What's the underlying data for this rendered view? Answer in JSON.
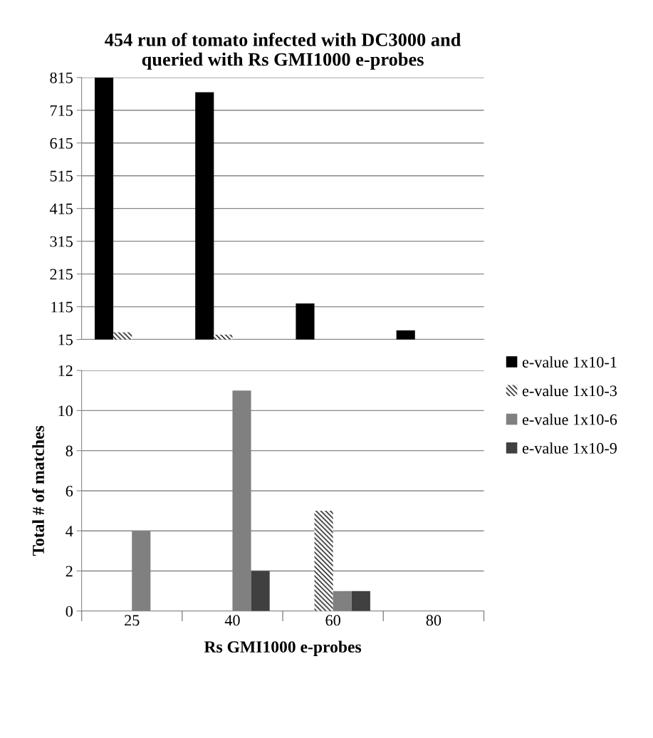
{
  "chart_data": [
    {
      "type": "bar",
      "title": "454 run of tomato infected with DC3000 and\nqueried with Rs GMI1000 e-probes",
      "categories": [
        "25",
        "40",
        "60",
        "80"
      ],
      "ylim": [
        15,
        815
      ],
      "yticks": [
        15,
        115,
        215,
        315,
        415,
        515,
        615,
        715,
        815
      ],
      "grid": "y",
      "tick_labels": "y",
      "series": [
        {
          "color": "#000000",
          "values": [
            815,
            770,
            125,
            43
          ]
        },
        {
          "color": "#ffffff",
          "values": [
            37,
            30,
            null,
            null
          ]
        },
        {
          "color": "#808080",
          "values": [
            null,
            null,
            null,
            null
          ]
        },
        {
          "color": "#404040",
          "values": [
            null,
            null,
            null,
            null
          ]
        }
      ]
    },
    {
      "type": "bar",
      "categories": [
        "25",
        "40",
        "60",
        "80"
      ],
      "xlabel": "Rs GMI1000 e-probes",
      "ylabel": "Total # of matches",
      "ylim": [
        0,
        12
      ],
      "yticks": [
        0,
        2,
        4,
        6,
        8,
        10,
        12
      ],
      "grid": "y",
      "legend": "right",
      "series": [
        {
          "name": "e-value 1x10-1",
          "color": "#000000",
          "values": [
            null,
            null,
            null,
            null
          ]
        },
        {
          "name": "e-value 1x10-3",
          "color": "#ffffff",
          "values": [
            null,
            null,
            5,
            0
          ]
        },
        {
          "name": "e-value 1x10-6",
          "color": "#808080",
          "values": [
            4,
            11,
            1,
            0
          ]
        },
        {
          "name": "e-value 1x10-9",
          "color": "#404040",
          "values": [
            0,
            2,
            1,
            0
          ]
        }
      ]
    }
  ]
}
